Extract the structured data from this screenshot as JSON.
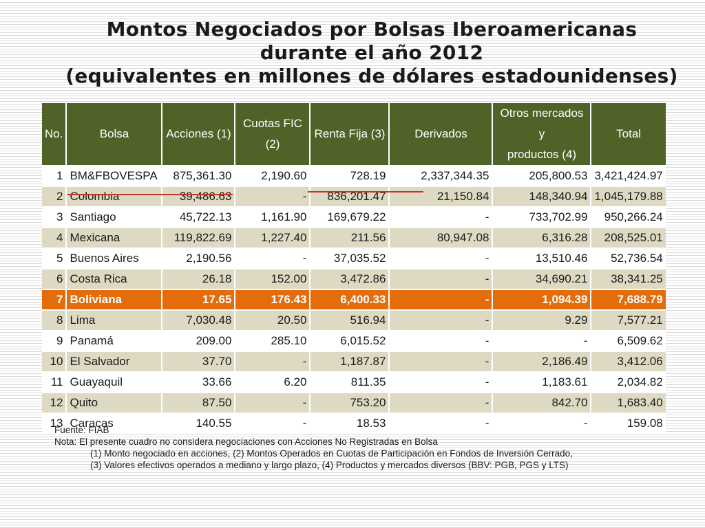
{
  "title": {
    "line1": "Montos Negociados por Bolsas Iberoamericanas",
    "line2": "durante el año 2012",
    "line3": "(equivalentes en millones de dólares estadounidenses)"
  },
  "table": {
    "headers": [
      "No.",
      "Bolsa",
      "Acciones (1)",
      "Cuotas FIC\n(2)",
      "Renta Fija (3)",
      "Derivados",
      "Otros mercados y\nproductos (4)",
      "Total"
    ],
    "rows": [
      [
        "1",
        "BM&FBOVESPA",
        "875,361.30",
        "2,190.60",
        "728.19",
        "2,337,344.35",
        "205,800.53",
        "3,421,424.97"
      ],
      [
        "2",
        "Colombia",
        "39,486.63",
        "-",
        "836,201.47",
        "21,150.84",
        "148,340.94",
        "1,045,179.88"
      ],
      [
        "3",
        "Santiago",
        "45,722.13",
        "1,161.90",
        "169,679.22",
        "-",
        "733,702.99",
        "950,266.24"
      ],
      [
        "4",
        "Mexicana",
        "119,822.69",
        "1,227.40",
        "211.56",
        "80,947.08",
        "6,316.28",
        "208,525.01"
      ],
      [
        "5",
        "Buenos Aires",
        "2,190.56",
        "-",
        "37,035.52",
        "-",
        "13,510.46",
        "52,736.54"
      ],
      [
        "6",
        "Costa Rica",
        "26.18",
        "152.00",
        "3,472.86",
        "-",
        "34,690.21",
        "38,341.25"
      ],
      [
        "7",
        "Boliviana",
        "17.65",
        "176.43",
        "6,400.33",
        "-",
        "1,094.39",
        "7,688.79"
      ],
      [
        "8",
        "Lima",
        "7,030.48",
        "20.50",
        "516.94",
        "-",
        "9.29",
        "7,577.21"
      ],
      [
        "9",
        "Panamá",
        "209.00",
        "285.10",
        "6,015.52",
        "-",
        "-",
        "6,509.62"
      ],
      [
        "10",
        "El Salvador",
        "37.70",
        "-",
        "1,187.87",
        "-",
        "2,186.49",
        "3,412.06"
      ],
      [
        "11",
        "Guayaquil",
        "33.66",
        "6.20",
        "811.35",
        "-",
        "1,183.61",
        "2,034.82"
      ],
      [
        "12",
        "Quito",
        "87.50",
        "-",
        "753.20",
        "-",
        "842.70",
        "1,683.40"
      ],
      [
        "13",
        "Caracas",
        "140.55",
        "-",
        "18.53",
        "-",
        "-",
        "159.08"
      ]
    ],
    "highlight_row": 6,
    "colors": {
      "header": "#4f6228",
      "band": "#ddd9c3",
      "highlight": "#e46c0a"
    }
  },
  "notes": {
    "source": "Fuente: FIAB",
    "note": "Nota: El presente cuadro no considera negociaciones con Acciones No Registradas en Bolsa",
    "foot1": "(1) Monto negociado en acciones, (2) Montos Operados en Cuotas de Participación en Fondos de Inversión Cerrado,",
    "foot2": "(3) Valores efectivos operados a mediano y largo plazo, (4) Productos y mercados diversos (BBV: PGB, PGS y LTS)"
  }
}
